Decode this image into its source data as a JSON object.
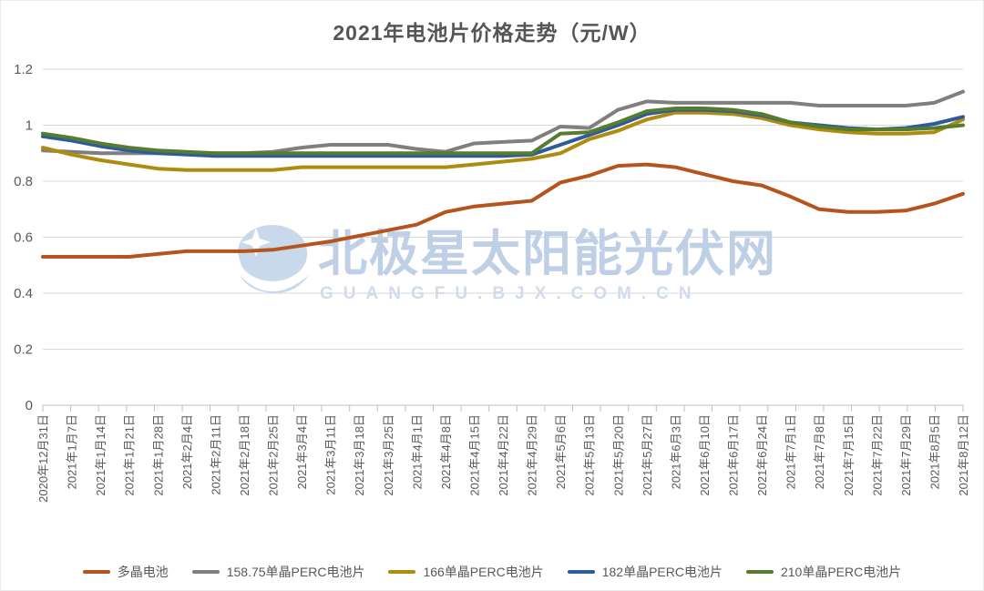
{
  "window": {
    "background": "#ffffff"
  },
  "chart_data": {
    "type": "line",
    "title": "2021年电池片价格走势（元/W）",
    "xlabel": "",
    "ylabel": "",
    "ylim": [
      0,
      1.2
    ],
    "ytick_labels": [
      "0",
      "0.2",
      "0.4",
      "0.6",
      "0.8",
      "1",
      "1.2"
    ],
    "yticks": [
      0,
      0.2,
      0.4,
      0.6,
      0.8,
      1.0,
      1.2
    ],
    "grid": true,
    "legend_position": "bottom",
    "categories": [
      "2020年12月31日",
      "2021年1月7日",
      "2021年1月14日",
      "2021年1月21日",
      "2021年1月28日",
      "2021年2月4日",
      "2021年2月11日",
      "2021年2月18日",
      "2021年2月25日",
      "2021年3月4日",
      "2021年3月11日",
      "2021年3月18日",
      "2021年3月25日",
      "2021年4月1日",
      "2021年4月8日",
      "2021年4月15日",
      "2021年4月22日",
      "2021年4月29日",
      "2021年5月6日",
      "2021年5月13日",
      "2021年5月20日",
      "2021年5月27日",
      "2021年6月3日",
      "2021年6月10日",
      "2021年6月17日",
      "2021年6月24日",
      "2021年7月1日",
      "2021年7月8日",
      "2021年7月15日",
      "2021年7月22日",
      "2021年7月29日",
      "2021年8月5日",
      "2021年8月12日"
    ],
    "series": [
      {
        "name": "多晶电池",
        "color": "#B5551D",
        "values": [
          0.53,
          0.53,
          0.53,
          0.53,
          0.54,
          0.55,
          0.55,
          0.55,
          0.555,
          0.57,
          0.585,
          0.605,
          0.625,
          0.645,
          0.69,
          0.71,
          0.72,
          0.73,
          0.795,
          0.82,
          0.855,
          0.86,
          0.85,
          0.825,
          0.8,
          0.785,
          0.745,
          0.7,
          0.69,
          0.69,
          0.695,
          0.72,
          0.755
        ]
      },
      {
        "name": "158.75单晶PERC电池片",
        "color": "#7F7F7F",
        "values": [
          0.91,
          0.905,
          0.9,
          0.9,
          0.9,
          0.9,
          0.9,
          0.9,
          0.905,
          0.92,
          0.93,
          0.93,
          0.93,
          0.915,
          0.905,
          0.935,
          0.94,
          0.945,
          0.995,
          0.99,
          1.055,
          1.085,
          1.08,
          1.08,
          1.08,
          1.08,
          1.08,
          1.07,
          1.07,
          1.07,
          1.07,
          1.08,
          1.12
        ]
      },
      {
        "name": "166单晶PERC电池片",
        "color": "#AF8C0F",
        "values": [
          0.92,
          0.895,
          0.875,
          0.86,
          0.845,
          0.84,
          0.84,
          0.84,
          0.84,
          0.85,
          0.85,
          0.85,
          0.85,
          0.85,
          0.85,
          0.86,
          0.87,
          0.88,
          0.9,
          0.95,
          0.98,
          1.02,
          1.045,
          1.045,
          1.04,
          1.025,
          1.0,
          0.985,
          0.975,
          0.97,
          0.97,
          0.975,
          1.02
        ]
      },
      {
        "name": "182单晶PERC电池片",
        "color": "#2F5B9D",
        "values": [
          0.96,
          0.945,
          0.925,
          0.91,
          0.9,
          0.895,
          0.89,
          0.89,
          0.89,
          0.89,
          0.89,
          0.89,
          0.89,
          0.89,
          0.89,
          0.89,
          0.89,
          0.895,
          0.93,
          0.965,
          1.0,
          1.04,
          1.055,
          1.055,
          1.05,
          1.035,
          1.01,
          1.0,
          0.99,
          0.985,
          0.99,
          1.005,
          1.03
        ]
      },
      {
        "name": "210单晶PERC电池片",
        "color": "#567D2F",
        "values": [
          0.97,
          0.955,
          0.935,
          0.92,
          0.91,
          0.905,
          0.9,
          0.9,
          0.9,
          0.9,
          0.9,
          0.9,
          0.9,
          0.9,
          0.9,
          0.9,
          0.9,
          0.9,
          0.97,
          0.975,
          1.01,
          1.05,
          1.06,
          1.06,
          1.055,
          1.04,
          1.01,
          0.995,
          0.985,
          0.985,
          0.985,
          0.99,
          1.0
        ]
      }
    ]
  },
  "watermark": {
    "line1": "北极星太阳能光伏网",
    "line2": "GUANGFU.BJX.COM.CN",
    "logo_color": "#c9d9ec",
    "text_color": "#bfd0e6",
    "subtext_color": "#cfdcee"
  },
  "style": {
    "gridline_color": "#D9D9D9",
    "axis_color": "#BFBFBF",
    "tick_label_color": "#595959",
    "title_color": "#555555"
  }
}
